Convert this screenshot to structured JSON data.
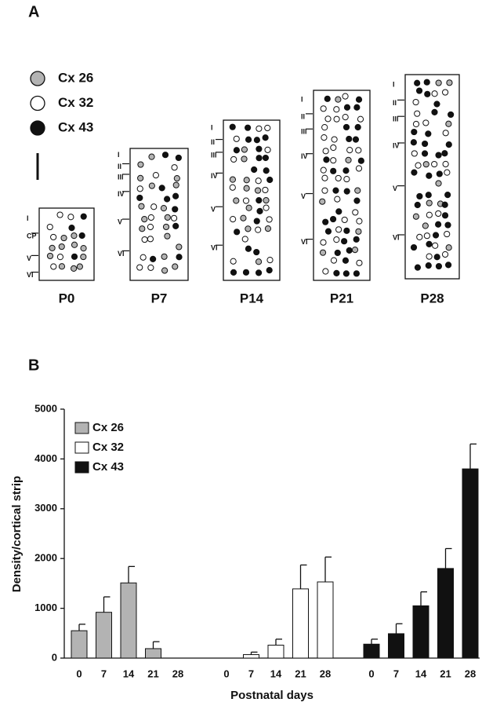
{
  "panel_a": {
    "label": "A",
    "legend": [
      "Cx 26",
      "Cx 32",
      "Cx 43"
    ],
    "columns": [
      {
        "label": "P0",
        "layers": [
          "I",
          "CP",
          "V",
          "VI"
        ]
      },
      {
        "label": "P7",
        "layers": [
          "I",
          "II",
          "III",
          "IV",
          "V",
          "VI"
        ]
      },
      {
        "label": "P14",
        "layers": [
          "I",
          "II",
          "III",
          "IV",
          "V",
          "VI"
        ]
      },
      {
        "label": "P21",
        "layers": [
          "I",
          "II",
          "III",
          "IV",
          "V",
          "VI"
        ]
      },
      {
        "label": "P28",
        "layers": [
          "I",
          "II",
          "III",
          "IV",
          "V",
          "VI"
        ]
      }
    ]
  },
  "chart_data": {
    "type": "bar",
    "panel_label": "B",
    "ylabel": "Density/cortical strip",
    "xlabel": "Postnatal days",
    "categories": [
      "0",
      "7",
      "14",
      "21",
      "28"
    ],
    "series": [
      {
        "name": "Cx 26",
        "color": "#b3b3b3",
        "values": [
          550,
          920,
          1510,
          190,
          0
        ],
        "errors": [
          130,
          310,
          330,
          140,
          null
        ]
      },
      {
        "name": "Cx 32",
        "color": "#ffffff",
        "values": [
          0,
          70,
          260,
          1390,
          1530
        ],
        "errors": [
          null,
          50,
          120,
          480,
          500
        ]
      },
      {
        "name": "Cx 43",
        "color": "#111111",
        "values": [
          280,
          490,
          1050,
          1800,
          3800
        ],
        "errors": [
          100,
          200,
          280,
          400,
          500
        ]
      }
    ],
    "ylim": [
      0,
      5000
    ],
    "yticks": [
      0,
      1000,
      2000,
      3000,
      4000,
      5000
    ],
    "legend": "upper left"
  }
}
